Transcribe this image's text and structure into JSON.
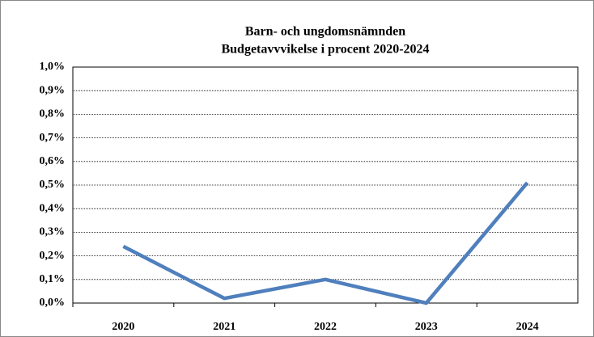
{
  "chart_data": {
    "type": "line",
    "title": "Barn- och ungdomsnämnden",
    "subtitle": "Budgetavvvikelse i procent  2020-2024",
    "categories": [
      "2020",
      "2021",
      "2022",
      "2023",
      "2024"
    ],
    "series": [
      {
        "name": "Budgetavvikelse",
        "color": "#4f7fbd",
        "values": [
          0.24,
          0.02,
          0.1,
          0.0,
          0.51
        ]
      }
    ],
    "ylim": [
      0,
      1
    ],
    "yticks": [
      {
        "value": 0,
        "label": "0,0%"
      },
      {
        "value": 0.1,
        "label": "0,1%"
      },
      {
        "value": 0.2,
        "label": "0,2%"
      },
      {
        "value": 0.3,
        "label": "0,3%"
      },
      {
        "value": 0.4,
        "label": "0,4%"
      },
      {
        "value": 0.5,
        "label": "0,5%"
      },
      {
        "value": 0.6,
        "label": "0,6%"
      },
      {
        "value": 0.7,
        "label": "0,7%"
      },
      {
        "value": 0.8,
        "label": "0,8%"
      },
      {
        "value": 0.9,
        "label": "0,9%"
      },
      {
        "value": 1,
        "label": "1,0%"
      }
    ],
    "grid": true
  }
}
